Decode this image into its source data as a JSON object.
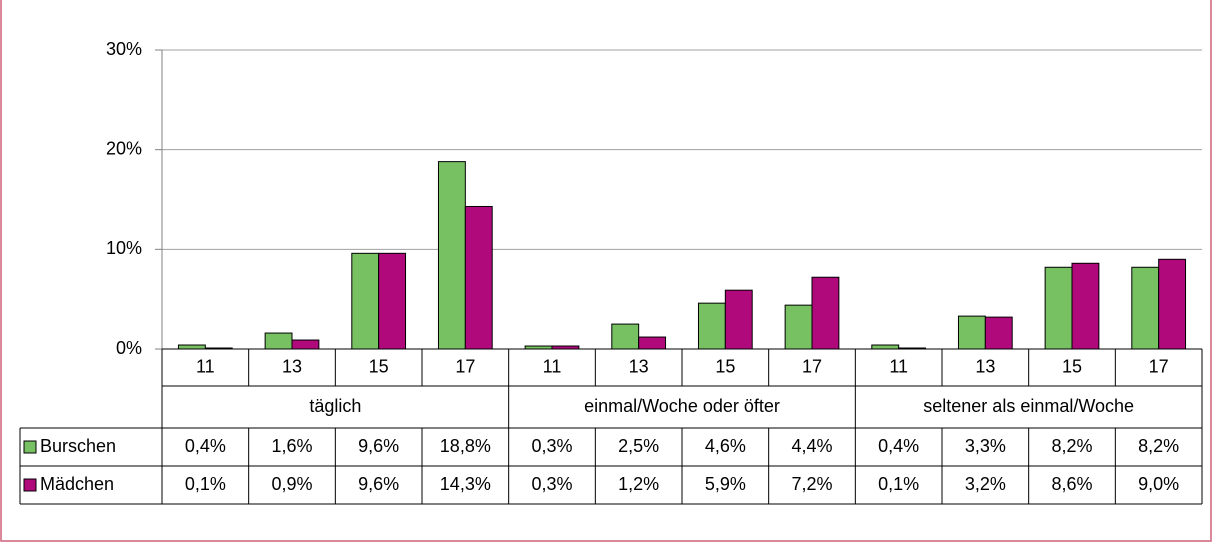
{
  "chart_data": {
    "type": "bar",
    "categories": [
      "11",
      "13",
      "15",
      "17",
      "11",
      "13",
      "15",
      "17",
      "11",
      "13",
      "15",
      "17"
    ],
    "groups": [
      "täglich",
      "einmal/Woche oder öfter",
      "seltener als einmal/Woche"
    ],
    "series": [
      {
        "name": "Burschen",
        "color": "#77c163",
        "values": [
          0.4,
          1.6,
          9.6,
          18.8,
          0.3,
          2.5,
          4.6,
          4.4,
          0.4,
          3.3,
          8.2,
          8.2
        ],
        "value_labels": [
          "0,4%",
          "1,6%",
          "9,6%",
          "18,8%",
          "0,3%",
          "2,5%",
          "4,6%",
          "4,4%",
          "0,4%",
          "3,3%",
          "8,2%",
          "8,2%"
        ]
      },
      {
        "name": "Mädchen",
        "color": "#b0097b",
        "values": [
          0.1,
          0.9,
          9.6,
          14.3,
          0.3,
          1.2,
          5.9,
          7.2,
          0.1,
          3.2,
          8.6,
          9.0
        ],
        "value_labels": [
          "0,1%",
          "0,9%",
          "9,6%",
          "14,3%",
          "0,3%",
          "1,2%",
          "5,9%",
          "7,2%",
          "0,1%",
          "3,2%",
          "8,6%",
          "9,0%"
        ]
      }
    ],
    "ylim": [
      0,
      30
    ],
    "yticks": [
      {
        "value": 0,
        "label": "0%"
      },
      {
        "value": 10,
        "label": "10%"
      },
      {
        "value": 20,
        "label": "20%"
      },
      {
        "value": 30,
        "label": "30%"
      }
    ],
    "grid": true
  }
}
